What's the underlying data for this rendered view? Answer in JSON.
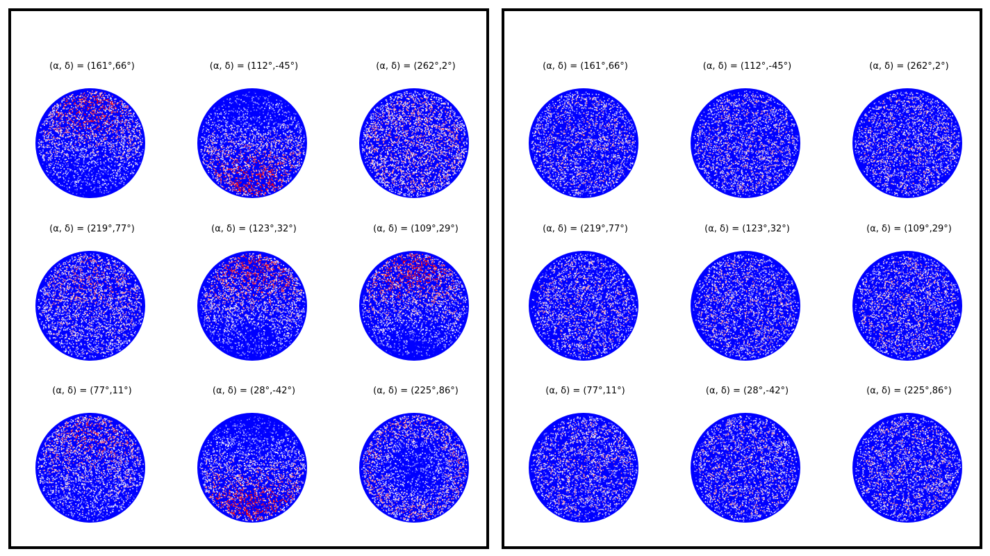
{
  "chart_data": [
    {
      "type": "heatmap",
      "panel": "left",
      "colors": {
        "low": "#0000ff",
        "mid": "#ffffff",
        "high": "#ff0000"
      },
      "subplots": [
        {
          "title": "(α, δ) = (161°,66°)",
          "pattern": "dipole",
          "pole_y": -0.45,
          "strength": 1.0
        },
        {
          "title": "(α, δ) = (112°,-45°)",
          "pattern": "dipole",
          "pole_y": 0.55,
          "strength": 1.0
        },
        {
          "title": "(α, δ) = (262°,2°)",
          "pattern": "uniform-warm",
          "pole_y": 0.0,
          "strength": 0.55
        },
        {
          "title": "(α, δ) = (219°,77°)",
          "pattern": "dipole",
          "pole_y": -0.2,
          "strength": 0.75
        },
        {
          "title": "(α, δ) = (123°,32°)",
          "pattern": "dipole",
          "pole_y": -0.6,
          "strength": 0.9
        },
        {
          "title": "(α, δ) = (109°,29°)",
          "pattern": "dipole",
          "pole_y": -0.6,
          "strength": 0.9
        },
        {
          "title": "(α, δ) = (77°,11°)",
          "pattern": "dipole",
          "pole_y": -0.4,
          "strength": 0.7
        },
        {
          "title": "(α, δ) = (28°,-42°)",
          "pattern": "dipole",
          "pole_y": 0.6,
          "strength": 1.0
        },
        {
          "title": "(α, δ) = (225°,86°)",
          "pattern": "dipole",
          "pole_y": 0.0,
          "strength": 0.8
        }
      ]
    },
    {
      "type": "heatmap",
      "panel": "right",
      "colors": {
        "low": "#0000ff",
        "mid": "#ffffff",
        "high": "#ff0000"
      },
      "subplots": [
        {
          "title": "(α, δ) = (161°,66°)",
          "pattern": "isotropic",
          "pole_y": 0.0,
          "strength": 0.3
        },
        {
          "title": "(α, δ) = (112°,-45°)",
          "pattern": "isotropic",
          "pole_y": 0.0,
          "strength": 0.3
        },
        {
          "title": "(α, δ) = (262°,2°)",
          "pattern": "isotropic",
          "pole_y": 0.0,
          "strength": 0.3
        },
        {
          "title": "(α, δ) = (219°,77°)",
          "pattern": "isotropic",
          "pole_y": 0.0,
          "strength": 0.3
        },
        {
          "title": "(α, δ) = (123°,32°)",
          "pattern": "isotropic",
          "pole_y": 0.0,
          "strength": 0.3
        },
        {
          "title": "(α, δ) = (109°,29°)",
          "pattern": "isotropic",
          "pole_y": 0.0,
          "strength": 0.3
        },
        {
          "title": "(α, δ) = (77°,11°)",
          "pattern": "isotropic",
          "pole_y": 0.0,
          "strength": 0.3
        },
        {
          "title": "(α, δ) = (28°,-42°)",
          "pattern": "isotropic",
          "pole_y": 0.0,
          "strength": 0.3
        },
        {
          "title": "(α, δ) = (225°,86°)",
          "pattern": "isotropic",
          "pole_y": 0.0,
          "strength": 0.3
        }
      ]
    }
  ]
}
